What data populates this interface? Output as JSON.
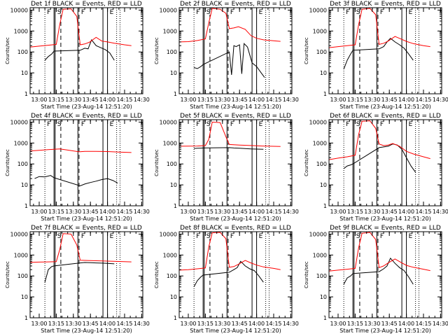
{
  "figure": {
    "xlabel": "Start Time (23-Aug-14 12:51:20)",
    "ylabel": "Counts/sec",
    "x_ticks": [
      "13:00",
      "13:15",
      "13:30",
      "13:45",
      "14:00",
      "14:15",
      "14:30"
    ],
    "y_ticks": [
      "1",
      "10",
      "100",
      "1000",
      "10000"
    ],
    "colors": {
      "events": "#000000",
      "lld": "#ff0000",
      "axes": "#000000",
      "background": "#ffffff"
    }
  },
  "chart_data": [
    {
      "type": "line",
      "title": "Det 1f BLACK = Events, RED = LLD",
      "xlabel": "Start Time (23-Aug-14 12:51:20)",
      "ylabel": "Counts/sec",
      "xlim": [
        "12:52",
        "14:31"
      ],
      "ylim": [
        1,
        13000
      ],
      "yscale": "log",
      "markers": [
        "F",
        "S",
        "F",
        "E"
      ],
      "vlines_solid": [
        "13:13",
        "13:14",
        "13:34",
        "13:56",
        "14:00"
      ],
      "vlines_dashed": [
        "13:19",
        "13:35"
      ],
      "vlines_dotted": [
        "13:05",
        "14:08",
        "14:11"
      ],
      "series": [
        {
          "name": "Events",
          "x": [
            "13:05",
            "13:08",
            "13:11",
            "13:13",
            "13:36",
            "13:40",
            "13:43",
            "13:46",
            "13:50",
            "13:54",
            "13:58",
            "14:02",
            "14:06"
          ],
          "y": [
            40,
            60,
            80,
            110,
            120,
            150,
            140,
            380,
            200,
            160,
            130,
            90,
            40
          ]
        },
        {
          "name": "LLD",
          "x": [
            "12:52",
            "13:00",
            "13:08",
            "13:15",
            "13:18",
            "13:21",
            "13:28",
            "13:33",
            "13:36",
            "13:40",
            "13:44",
            "13:50",
            "13:55",
            "14:00",
            "14:06",
            "14:15",
            "14:21"
          ],
          "y": [
            170,
            190,
            210,
            230,
            2000,
            11000,
            11500,
            5000,
            220,
            240,
            290,
            500,
            330,
            300,
            260,
            220,
            200
          ]
        }
      ]
    },
    {
      "type": "line",
      "title": "Det 2f BLACK = Events, RED = LLD",
      "xlabel": "Start Time (23-Aug-14 12:51:20)",
      "ylabel": "Counts/sec",
      "xlim": [
        "12:52",
        "14:31"
      ],
      "ylim": [
        1,
        13000
      ],
      "yscale": "log",
      "markers": [
        "F",
        "S",
        "F",
        "E"
      ],
      "vlines_solid": [
        "13:13",
        "13:14",
        "13:34",
        "13:56",
        "14:00"
      ],
      "vlines_dashed": [
        "13:19",
        "13:35"
      ],
      "vlines_dotted": [
        "13:05",
        "14:08",
        "14:11"
      ],
      "series": [
        {
          "name": "Events",
          "x": [
            "13:05",
            "13:08",
            "13:11",
            "13:13",
            "13:36",
            "13:38",
            "13:40",
            "13:42",
            "13:45",
            "13:47",
            "13:49",
            "13:52",
            "13:56",
            "14:00",
            "14:04",
            "14:07"
          ],
          "y": [
            18,
            16,
            20,
            25,
            100,
            8,
            200,
            180,
            220,
            9,
            250,
            170,
            30,
            20,
            10,
            6
          ]
        },
        {
          "name": "LLD",
          "x": [
            "12:52",
            "13:00",
            "13:08",
            "13:15",
            "13:18",
            "13:21",
            "13:28",
            "13:33",
            "13:36",
            "13:40",
            "13:44",
            "13:50",
            "13:55",
            "14:00",
            "14:06",
            "14:15",
            "14:21"
          ],
          "y": [
            300,
            310,
            350,
            420,
            2500,
            12000,
            11000,
            7000,
            1300,
            1400,
            1600,
            1200,
            600,
            450,
            380,
            340,
            320
          ]
        }
      ]
    },
    {
      "type": "line",
      "title": "Det 3f BLACK = Events, RED = LLD",
      "xlabel": "Start Time (23-Aug-14 12:51:20)",
      "ylabel": "Counts/sec",
      "xlim": [
        "12:52",
        "14:31"
      ],
      "ylim": [
        1,
        13000
      ],
      "yscale": "log",
      "markers": [
        "F",
        "S",
        "F",
        "E"
      ],
      "vlines_solid": [
        "13:13",
        "13:14",
        "13:34",
        "13:56",
        "14:00"
      ],
      "vlines_dashed": [
        "13:19",
        "13:35"
      ],
      "vlines_dotted": [
        "13:05",
        "14:08",
        "14:11"
      ],
      "series": [
        {
          "name": "Events",
          "x": [
            "13:05",
            "13:08",
            "13:11",
            "13:13",
            "13:36",
            "13:40",
            "13:43",
            "13:46",
            "13:50",
            "13:54",
            "13:58",
            "14:02",
            "14:06"
          ],
          "y": [
            15,
            40,
            80,
            120,
            140,
            180,
            300,
            450,
            300,
            220,
            150,
            80,
            40
          ]
        },
        {
          "name": "LLD",
          "x": [
            "12:52",
            "13:00",
            "13:08",
            "13:15",
            "13:18",
            "13:21",
            "13:28",
            "13:33",
            "13:36",
            "13:40",
            "13:44",
            "13:50",
            "13:55",
            "14:00",
            "14:06",
            "14:15",
            "14:21"
          ],
          "y": [
            160,
            180,
            200,
            220,
            2000,
            11000,
            12000,
            6000,
            230,
            260,
            330,
            550,
            420,
            320,
            250,
            200,
            180
          ]
        }
      ]
    },
    {
      "type": "line",
      "title": "Det 4f BLACK = Events, RED = LLD",
      "xlabel": "Start Time (23-Aug-14 12:51:20)",
      "ylabel": "Counts/sec",
      "xlim": [
        "12:52",
        "14:31"
      ],
      "ylim": [
        1,
        13000
      ],
      "yscale": "log",
      "markers": [
        "F",
        "S",
        "F",
        "E"
      ],
      "vlines_solid": [
        "13:13",
        "13:14",
        "13:34",
        "13:56",
        "14:00"
      ],
      "vlines_dashed": [
        "13:19",
        "13:35"
      ],
      "vlines_dotted": [
        "13:05",
        "14:08",
        "14:11"
      ],
      "series": [
        {
          "name": "Events",
          "x": [
            "12:56",
            "13:00",
            "13:05",
            "13:10",
            "13:13",
            "13:36",
            "13:40",
            "13:45",
            "13:50",
            "13:55",
            "14:00",
            "14:05",
            "14:09"
          ],
          "y": [
            20,
            25,
            24,
            28,
            22,
            9,
            11,
            13,
            15,
            18,
            20,
            16,
            12
          ]
        },
        {
          "name": "LLD",
          "x": [
            "12:52",
            "13:00",
            "13:08",
            "13:13",
            "13:18",
            "13:24",
            "13:30",
            "13:35",
            "13:40",
            "13:50",
            "14:00",
            "14:10",
            "14:21"
          ],
          "y": [
            420,
            450,
            480,
            500,
            520,
            470,
            420,
            380,
            400,
            400,
            390,
            370,
            350
          ]
        }
      ]
    },
    {
      "type": "line",
      "title": "Det 5f BLACK = Events, RED = LLD",
      "xlabel": "Start Time (23-Aug-14 12:51:20)",
      "ylabel": "Counts/sec",
      "xlim": [
        "12:52",
        "14:31"
      ],
      "ylim": [
        1,
        13000
      ],
      "yscale": "log",
      "markers": [
        "F",
        "S",
        "F",
        "E"
      ],
      "vlines_solid": [
        "13:13",
        "13:14",
        "13:34",
        "13:56",
        "14:00"
      ],
      "vlines_dashed": [
        "13:19",
        "13:35"
      ],
      "vlines_dotted": [
        "13:05",
        "14:08",
        "14:11"
      ],
      "series": [
        {
          "name": "Events",
          "x": [
            "13:05",
            "13:08",
            "13:11",
            "13:13",
            "13:36",
            "13:40",
            "13:45",
            "13:50",
            "13:55",
            "14:00",
            "14:06"
          ],
          "y": [
            550,
            560,
            570,
            580,
            600,
            580,
            560,
            540,
            520,
            510,
            500
          ]
        },
        {
          "name": "LLD",
          "x": [
            "12:52",
            "13:00",
            "13:08",
            "13:15",
            "13:18",
            "13:21",
            "13:28",
            "13:33",
            "13:36",
            "13:45",
            "13:55",
            "14:05",
            "14:21"
          ],
          "y": [
            700,
            710,
            720,
            750,
            1500,
            10000,
            9500,
            2000,
            850,
            800,
            760,
            720,
            680
          ]
        }
      ]
    },
    {
      "type": "line",
      "title": "Det 6f BLACK = Events, RED = LLD",
      "xlabel": "Start Time (23-Aug-14 12:51:20)",
      "ylabel": "Counts/sec",
      "xlim": [
        "12:52",
        "14:31"
      ],
      "ylim": [
        1,
        13000
      ],
      "yscale": "log",
      "markers": [
        "F",
        "S",
        "F",
        "E"
      ],
      "vlines_solid": [
        "13:13",
        "13:14",
        "13:34",
        "13:56",
        "14:00"
      ],
      "vlines_dashed": [
        "13:19",
        "13:35"
      ],
      "vlines_dotted": [
        "13:05",
        "14:08",
        "14:11"
      ],
      "series": [
        {
          "name": "Events",
          "x": [
            "13:05",
            "13:08",
            "13:11",
            "13:13",
            "13:36",
            "13:40",
            "13:44",
            "13:48",
            "13:52",
            "13:56",
            "14:00",
            "14:04",
            "14:08"
          ],
          "y": [
            60,
            80,
            90,
            100,
            600,
            650,
            700,
            900,
            800,
            500,
            200,
            80,
            40
          ]
        },
        {
          "name": "LLD",
          "x": [
            "12:52",
            "13:00",
            "13:08",
            "13:15",
            "13:18",
            "13:21",
            "13:28",
            "13:33",
            "13:36",
            "13:40",
            "13:44",
            "13:48",
            "13:54",
            "14:00",
            "14:06",
            "14:15",
            "14:21"
          ],
          "y": [
            160,
            190,
            220,
            260,
            2500,
            11000,
            11500,
            5000,
            900,
            750,
            800,
            950,
            700,
            400,
            300,
            220,
            180
          ]
        }
      ]
    },
    {
      "type": "line",
      "title": "Det 7f BLACK = Events, RED = LLD",
      "xlabel": "Start Time (23-Aug-14 12:51:20)",
      "ylabel": "Counts/sec",
      "xlim": [
        "12:52",
        "14:31"
      ],
      "ylim": [
        1,
        13000
      ],
      "yscale": "log",
      "markers": [
        "F",
        "S",
        "F",
        "E"
      ],
      "vlines_solid": [
        "13:13",
        "13:14",
        "13:34",
        "13:56",
        "14:00"
      ],
      "vlines_dashed": [
        "13:19",
        "13:35"
      ],
      "vlines_dotted": [
        "13:05",
        "14:08",
        "14:11"
      ],
      "series": [
        {
          "name": "Events",
          "x": [
            "13:05",
            "13:08",
            "13:11",
            "13:13",
            "13:36",
            "13:40",
            "13:45",
            "13:50",
            "13:55",
            "14:00",
            "14:06"
          ],
          "y": [
            50,
            200,
            280,
            300,
            420,
            440,
            430,
            420,
            410,
            400,
            380
          ]
        },
        {
          "name": "LLD",
          "x": [
            "12:52",
            "13:00",
            "13:08",
            "13:15",
            "13:18",
            "13:21",
            "13:28",
            "13:33",
            "13:36",
            "13:45",
            "13:55",
            "14:05",
            "14:21"
          ],
          "y": [
            450,
            460,
            470,
            480,
            1800,
            10500,
            10000,
            3000,
            560,
            540,
            520,
            500,
            470
          ]
        }
      ]
    },
    {
      "type": "line",
      "title": "Det 8f BLACK = Events, RED = LLD",
      "xlabel": "Start Time (23-Aug-14 12:51:20)",
      "ylabel": "Counts/sec",
      "xlim": [
        "12:52",
        "14:31"
      ],
      "ylim": [
        1,
        13000
      ],
      "yscale": "log",
      "markers": [
        "F",
        "S",
        "F",
        "E"
      ],
      "vlines_solid": [
        "13:13",
        "13:14",
        "13:34",
        "13:56",
        "14:00"
      ],
      "vlines_dashed": [
        "13:19",
        "13:35"
      ],
      "vlines_dotted": [
        "13:05",
        "14:08",
        "14:11"
      ],
      "series": [
        {
          "name": "Events",
          "x": [
            "13:05",
            "13:08",
            "13:11",
            "13:13",
            "13:36",
            "13:40",
            "13:43",
            "13:46",
            "13:50",
            "13:54",
            "13:58",
            "14:02",
            "14:06"
          ],
          "y": [
            30,
            60,
            90,
            110,
            150,
            200,
            250,
            500,
            300,
            220,
            180,
            100,
            50
          ]
        },
        {
          "name": "LLD",
          "x": [
            "12:52",
            "13:00",
            "13:08",
            "13:15",
            "13:18",
            "13:21",
            "13:28",
            "13:33",
            "13:36",
            "13:40",
            "13:44",
            "13:50",
            "13:55",
            "14:00",
            "14:06",
            "14:15",
            "14:21"
          ],
          "y": [
            190,
            200,
            220,
            240,
            2500,
            11500,
            12000,
            6000,
            260,
            280,
            360,
            550,
            420,
            330,
            270,
            230,
            200
          ]
        }
      ]
    },
    {
      "type": "line",
      "title": "Det 9f BLACK = Events, RED = LLD",
      "xlabel": "Start Time (23-Aug-14 12:51:20)",
      "ylabel": "Counts/sec",
      "xlim": [
        "12:52",
        "14:31"
      ],
      "ylim": [
        1,
        13000
      ],
      "yscale": "log",
      "markers": [
        "F",
        "S",
        "F",
        "E"
      ],
      "vlines_solid": [
        "13:13",
        "13:14",
        "13:34",
        "13:56",
        "14:00"
      ],
      "vlines_dashed": [
        "13:19",
        "13:35"
      ],
      "vlines_dotted": [
        "13:05",
        "14:08",
        "14:11"
      ],
      "series": [
        {
          "name": "Events",
          "x": [
            "13:05",
            "13:08",
            "13:11",
            "13:13",
            "13:36",
            "13:40",
            "13:43",
            "13:46",
            "13:50",
            "13:54",
            "13:58",
            "14:02",
            "14:06"
          ],
          "y": [
            40,
            80,
            100,
            130,
            160,
            220,
            300,
            700,
            400,
            250,
            180,
            90,
            40
          ]
        },
        {
          "name": "LLD",
          "x": [
            "12:52",
            "13:00",
            "13:08",
            "13:15",
            "13:18",
            "13:21",
            "13:28",
            "13:33",
            "13:36",
            "13:40",
            "13:44",
            "13:50",
            "13:55",
            "14:00",
            "14:06",
            "14:15",
            "14:21"
          ],
          "y": [
            170,
            190,
            210,
            230,
            2200,
            11000,
            12000,
            5500,
            250,
            300,
            420,
            650,
            450,
            320,
            260,
            210,
            180
          ]
        }
      ]
    }
  ]
}
